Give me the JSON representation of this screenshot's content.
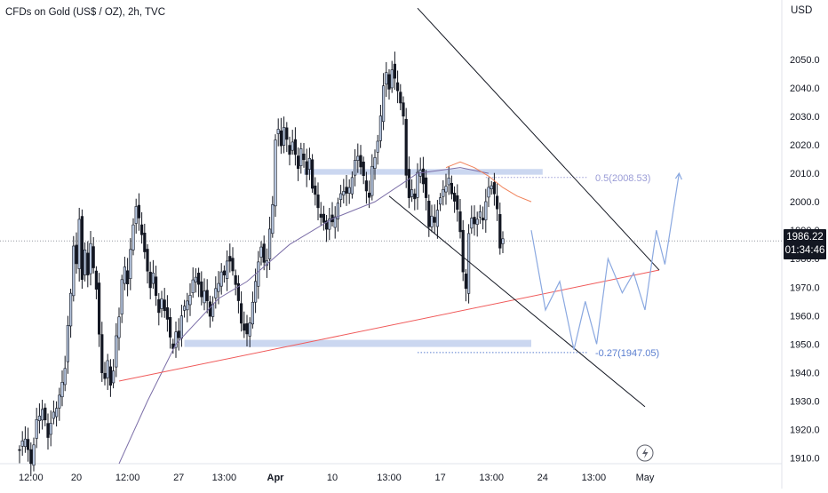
{
  "header": {
    "title": "CFDs on Gold (US$ / OZ), 2h, TVC",
    "currency": "USD"
  },
  "price_badge": {
    "price": "1986.22",
    "countdown": "01:34:46"
  },
  "colors": {
    "up_candle": "#b8c7e0",
    "down_candle": "#131722",
    "ma_orange": "#f0825a",
    "ma_purple": "#7c6fa8",
    "trendline_red": "#f05a5a",
    "zone_blue": "#c5d3ee",
    "projection_blue": "#8aa8e0",
    "fib_text": "#9a9cd6",
    "fib_text_low": "#5b7fd0",
    "axis_text": "#131722"
  },
  "icons": {
    "lightning": "lightning-icon"
  },
  "chart_data": {
    "type": "candlestick",
    "title": "CFDs on Gold (US$ / OZ), 2h, TVC",
    "currency": "USD",
    "ylim": [
      1908,
      2064
    ],
    "y_ticks": [
      1910,
      1920,
      1930,
      1940,
      1950,
      1960,
      1970,
      1980,
      1990,
      2000,
      2010,
      2020,
      2030,
      2040,
      2050
    ],
    "x_ticks": [
      {
        "label": "12:00",
        "bar": 4
      },
      {
        "label": "20",
        "bar": 20
      },
      {
        "label": "12:00",
        "bar": 38
      },
      {
        "label": "27",
        "bar": 56
      },
      {
        "label": "13:00",
        "bar": 72
      },
      {
        "label": "Apr",
        "bar": 90
      },
      {
        "label": "10",
        "bar": 110
      },
      {
        "label": "13:00",
        "bar": 130
      },
      {
        "label": "17",
        "bar": 148
      },
      {
        "label": "13:00",
        "bar": 166
      },
      {
        "label": "24",
        "bar": 184
      },
      {
        "label": "13:00",
        "bar": 202
      },
      {
        "label": "May",
        "bar": 220
      }
    ],
    "close_path": [
      [
        0,
        1912
      ],
      [
        2,
        1918
      ],
      [
        4,
        1908
      ],
      [
        6,
        1922
      ],
      [
        8,
        1928
      ],
      [
        10,
        1918
      ],
      [
        12,
        1925
      ],
      [
        14,
        1932
      ],
      [
        16,
        1942
      ],
      [
        18,
        1968
      ],
      [
        19,
        1985
      ],
      [
        20,
        1978
      ],
      [
        21,
        1995
      ],
      [
        22,
        1972
      ],
      [
        23,
        1982
      ],
      [
        24,
        1975
      ],
      [
        25,
        1985
      ],
      [
        27,
        1970
      ],
      [
        28,
        1952
      ],
      [
        29,
        1940
      ],
      [
        30,
        1938
      ],
      [
        31,
        1944
      ],
      [
        32,
        1937
      ],
      [
        33,
        1940
      ],
      [
        34,
        1952
      ],
      [
        35,
        1960
      ],
      [
        36,
        1972
      ],
      [
        37,
        1978
      ],
      [
        38,
        1972
      ],
      [
        39,
        1982
      ],
      [
        40,
        1992
      ],
      [
        41,
        1998
      ],
      [
        42,
        1994
      ],
      [
        43,
        1990
      ],
      [
        44,
        1982
      ],
      [
        45,
        1975
      ],
      [
        46,
        1970
      ],
      [
        47,
        1974
      ],
      [
        48,
        1968
      ],
      [
        49,
        1962
      ],
      [
        50,
        1965
      ],
      [
        51,
        1962
      ],
      [
        52,
        1958
      ],
      [
        53,
        1952
      ],
      [
        54,
        1950
      ],
      [
        55,
        1954
      ],
      [
        56,
        1952
      ],
      [
        57,
        1960
      ],
      [
        58,
        1962
      ],
      [
        59,
        1966
      ],
      [
        60,
        1968
      ],
      [
        61,
        1972
      ],
      [
        62,
        1974
      ],
      [
        63,
        1970
      ],
      [
        64,
        1966
      ],
      [
        65,
        1970
      ],
      [
        66,
        1965
      ],
      [
        67,
        1960
      ],
      [
        68,
        1964
      ],
      [
        69,
        1968
      ],
      [
        70,
        1972
      ],
      [
        71,
        1976
      ],
      [
        72,
        1974
      ],
      [
        73,
        1980
      ],
      [
        74,
        1978
      ],
      [
        75,
        1975
      ],
      [
        76,
        1972
      ],
      [
        77,
        1965
      ],
      [
        78,
        1958
      ],
      [
        79,
        1955
      ],
      [
        80,
        1952
      ],
      [
        81,
        1958
      ],
      [
        82,
        1965
      ],
      [
        83,
        1972
      ],
      [
        84,
        1980
      ],
      [
        85,
        1983
      ],
      [
        86,
        1978
      ],
      [
        87,
        1980
      ],
      [
        88,
        1990
      ],
      [
        89,
        2000
      ],
      [
        90,
        2022
      ],
      [
        91,
        2024
      ],
      [
        92,
        2020
      ],
      [
        93,
        2026
      ],
      [
        94,
        2022
      ],
      [
        95,
        2018
      ],
      [
        96,
        2020
      ],
      [
        97,
        2016
      ],
      [
        98,
        2012
      ],
      [
        99,
        2018
      ],
      [
        100,
        2016
      ],
      [
        101,
        2010
      ],
      [
        102,
        2014
      ],
      [
        103,
        2005
      ],
      [
        104,
        2002
      ],
      [
        105,
        1998
      ],
      [
        106,
        1996
      ],
      [
        107,
        1992
      ],
      [
        108,
        1990
      ],
      [
        109,
        1994
      ],
      [
        110,
        1992
      ],
      [
        111,
        1996
      ],
      [
        112,
        2000
      ],
      [
        113,
        2002
      ],
      [
        114,
        2004
      ],
      [
        115,
        2002
      ],
      [
        116,
        2005
      ],
      [
        117,
        2010
      ],
      [
        118,
        2014
      ],
      [
        119,
        2016
      ],
      [
        120,
        2012
      ],
      [
        121,
        2008
      ],
      [
        122,
        2005
      ],
      [
        123,
        2002
      ],
      [
        124,
        2012
      ],
      [
        125,
        2016
      ],
      [
        126,
        2020
      ],
      [
        127,
        2030
      ],
      [
        128,
        2042
      ],
      [
        129,
        2045
      ],
      [
        130,
        2040
      ],
      [
        131,
        2046
      ],
      [
        132,
        2042
      ],
      [
        133,
        2040
      ],
      [
        134,
        2035
      ],
      [
        135,
        2030
      ],
      [
        136,
        2010
      ],
      [
        137,
        2000
      ],
      [
        138,
        2004
      ],
      [
        139,
        2002
      ],
      [
        140,
        2010
      ],
      [
        141,
        2012
      ],
      [
        142,
        2006
      ],
      [
        143,
        2000
      ],
      [
        144,
        1992
      ],
      [
        145,
        1995
      ],
      [
        146,
        1993
      ],
      [
        147,
        1998
      ],
      [
        148,
        2000
      ],
      [
        149,
        2004
      ],
      [
        150,
        2006
      ],
      [
        151,
        2008
      ],
      [
        152,
        2004
      ],
      [
        153,
        2000
      ],
      [
        154,
        1996
      ],
      [
        155,
        1990
      ],
      [
        156,
        1975
      ],
      [
        157,
        1970
      ],
      [
        158,
        1990
      ],
      [
        159,
        1993
      ],
      [
        160,
        1992
      ],
      [
        161,
        1994
      ],
      [
        162,
        1996
      ],
      [
        163,
        1995
      ],
      [
        164,
        2000
      ],
      [
        165,
        2004
      ],
      [
        166,
        2006
      ],
      [
        167,
        2002
      ],
      [
        168,
        1998
      ],
      [
        169,
        1985
      ],
      [
        170,
        1986
      ]
    ],
    "indicators": {
      "ma_orange": [
        [
          150,
          2012
        ],
        [
          155,
          2014
        ],
        [
          160,
          2012
        ],
        [
          165,
          2009
        ],
        [
          170,
          2005
        ],
        [
          175,
          2002
        ],
        [
          180,
          2000
        ]
      ],
      "ma_purple": [
        [
          35,
          1908
        ],
        [
          45,
          1930
        ],
        [
          55,
          1950
        ],
        [
          70,
          1966
        ],
        [
          80,
          1972
        ],
        [
          95,
          1985
        ],
        [
          110,
          1994
        ],
        [
          125,
          2000
        ],
        [
          140,
          2010
        ],
        [
          155,
          2012
        ],
        [
          165,
          2010
        ]
      ]
    },
    "drawings": {
      "support_line": [
        [
          35,
          1937
        ],
        [
          225,
          1976
        ]
      ],
      "channel_upper": [
        [
          140,
          2068
        ],
        [
          225,
          1976
        ]
      ],
      "channel_lower": [
        [
          130,
          2002
        ],
        [
          220,
          1928
        ]
      ],
      "zones": [
        {
          "x": [
            100,
            184
          ],
          "y": [
            2009.5,
            2011.5
          ]
        },
        {
          "x": [
            58,
            180
          ],
          "y": [
            1949,
            1951.5
          ]
        }
      ],
      "projection_path": [
        [
          180,
          1990
        ],
        [
          185,
          1962
        ],
        [
          190,
          1972
        ],
        [
          195,
          1948
        ],
        [
          199,
          1965
        ],
        [
          203,
          1950
        ],
        [
          207,
          1980
        ],
        [
          212,
          1968
        ],
        [
          216,
          1975
        ],
        [
          220,
          1962
        ],
        [
          224,
          1990
        ],
        [
          227,
          1978
        ],
        [
          232,
          2010
        ]
      ],
      "fib_levels": [
        {
          "label": "0.5(2008.53)",
          "value": 2008.53,
          "x": [
            164,
            200
          ]
        },
        {
          "label": "-0.27(1947.05)",
          "value": 1947.05,
          "x": [
            140,
            200
          ]
        }
      ]
    },
    "last_price": 1986.22,
    "countdown": "01:34:46"
  }
}
